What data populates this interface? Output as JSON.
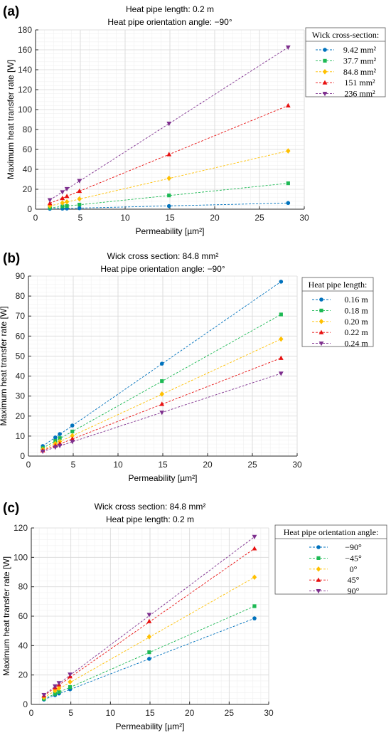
{
  "chart_data": [
    {
      "type": "line",
      "panel": "(a)",
      "title": [
        "Heat pipe length: 0.2 m",
        "Heat pipe orientation angle: −90°"
      ],
      "xlabel": "Permeability [µm²]",
      "ylabel": "Maximum heat transfer rate [W]",
      "xlim": [
        0,
        30
      ],
      "ylim": [
        0,
        180
      ],
      "xticks": [
        0,
        5,
        10,
        15,
        20,
        25,
        30
      ],
      "yticks": [
        0,
        20,
        40,
        60,
        80,
        100,
        120,
        140,
        160,
        180
      ],
      "grid": true,
      "legend": {
        "title": "Wick cross-section:",
        "placement": "outside-top-right"
      },
      "x": [
        1.6,
        3.0,
        3.5,
        4.9,
        14.9,
        28.2
      ],
      "series": [
        {
          "name": "9.42 mm²",
          "color": "#0072BD",
          "marker": "circle",
          "values": [
            0.4,
            0.6,
            0.7,
            1.0,
            3.1,
            6.2
          ]
        },
        {
          "name": "37.7 mm²",
          "color": "#1DB954",
          "marker": "square",
          "values": [
            1.4,
            2.8,
            3.2,
            4.6,
            13.8,
            26
          ]
        },
        {
          "name": "84.8 mm²",
          "color": "#FFC000",
          "marker": "diamond",
          "values": [
            3.3,
            6.3,
            7.4,
            10.3,
            31,
            58.5
          ]
        },
        {
          "name": "151 mm²",
          "color": "#E81010",
          "marker": "triangle-up",
          "values": [
            5.9,
            11,
            13,
            18.2,
            55,
            104
          ]
        },
        {
          "name": "236 mm²",
          "color": "#7E2F8E",
          "marker": "triangle-down",
          "values": [
            9.2,
            17.2,
            20.4,
            28.5,
            86,
            162.5
          ]
        }
      ]
    },
    {
      "type": "line",
      "panel": "(b)",
      "title": [
        "Wick cross section: 84.8 mm²",
        "Heat pipe orientation angle: −90°"
      ],
      "xlabel": "Permeability [µm²]",
      "ylabel": "Maximum heat transfer rate [W]",
      "xlim": [
        0,
        30
      ],
      "ylim": [
        0,
        90
      ],
      "xticks": [
        0,
        5,
        10,
        15,
        20,
        25,
        30
      ],
      "yticks": [
        0,
        10,
        20,
        30,
        40,
        50,
        60,
        70,
        80,
        90
      ],
      "grid": true,
      "legend": {
        "title": "Heat pipe length:",
        "placement": "outside-top-right"
      },
      "x": [
        1.6,
        3.0,
        3.5,
        4.9,
        14.9,
        28.2
      ],
      "series": [
        {
          "name": "0.16 m",
          "color": "#0072BD",
          "marker": "circle",
          "values": [
            5,
            9.3,
            11,
            15.3,
            46.2,
            87.2
          ]
        },
        {
          "name": "0.18 m",
          "color": "#1DB954",
          "marker": "square",
          "values": [
            4,
            7.6,
            9,
            12.3,
            37.5,
            70.8
          ]
        },
        {
          "name": "0.20 m",
          "color": "#FFC000",
          "marker": "diamond",
          "values": [
            3.3,
            6.3,
            7.3,
            10.2,
            31,
            58.5
          ]
        },
        {
          "name": "0.22 m",
          "color": "#E81010",
          "marker": "triangle-up",
          "values": [
            2.8,
            5.2,
            6.2,
            8.6,
            26,
            49
          ]
        },
        {
          "name": "0.24 m",
          "color": "#7E2F8E",
          "marker": "triangle-down",
          "values": [
            2.3,
            4.4,
            5.2,
            7.2,
            21.8,
            41.3
          ]
        }
      ]
    },
    {
      "type": "line",
      "panel": "(c)",
      "title": [
        "Wick cross section: 84.8 mm²",
        "Heat pipe length: 0.2 m"
      ],
      "xlabel": "Permeability [µm²]",
      "ylabel": "Maximum heat transfer rate [W]",
      "xlim": [
        0,
        30
      ],
      "ylim": [
        0,
        120
      ],
      "xticks": [
        0,
        5,
        10,
        15,
        20,
        25,
        30
      ],
      "yticks": [
        0,
        20,
        40,
        60,
        80,
        100,
        120
      ],
      "grid": true,
      "legend": {
        "title": "Heat pipe orientation angle:",
        "placement": "outside-top-right"
      },
      "x": [
        1.6,
        3.0,
        3.5,
        4.9,
        14.9,
        28.2
      ],
      "series": [
        {
          "name": "−90°",
          "color": "#0072BD",
          "marker": "circle",
          "values": [
            3.3,
            6.3,
            7.4,
            10.3,
            31,
            58.5
          ]
        },
        {
          "name": "−45°",
          "color": "#1DB954",
          "marker": "square",
          "values": [
            3.8,
            7.2,
            8.5,
            11.8,
            35.5,
            66.8
          ]
        },
        {
          "name": "0°",
          "color": "#FFC000",
          "marker": "diamond",
          "values": [
            4.8,
            9.3,
            11,
            15.3,
            46,
            86.5
          ]
        },
        {
          "name": "45°",
          "color": "#E81010",
          "marker": "triangle-up",
          "values": [
            6,
            11.5,
            13.5,
            19,
            56.5,
            106
          ]
        },
        {
          "name": "90°",
          "color": "#7E2F8E",
          "marker": "triangle-down",
          "values": [
            6.5,
            12.4,
            14.6,
            20.4,
            61,
            114
          ]
        }
      ]
    }
  ]
}
